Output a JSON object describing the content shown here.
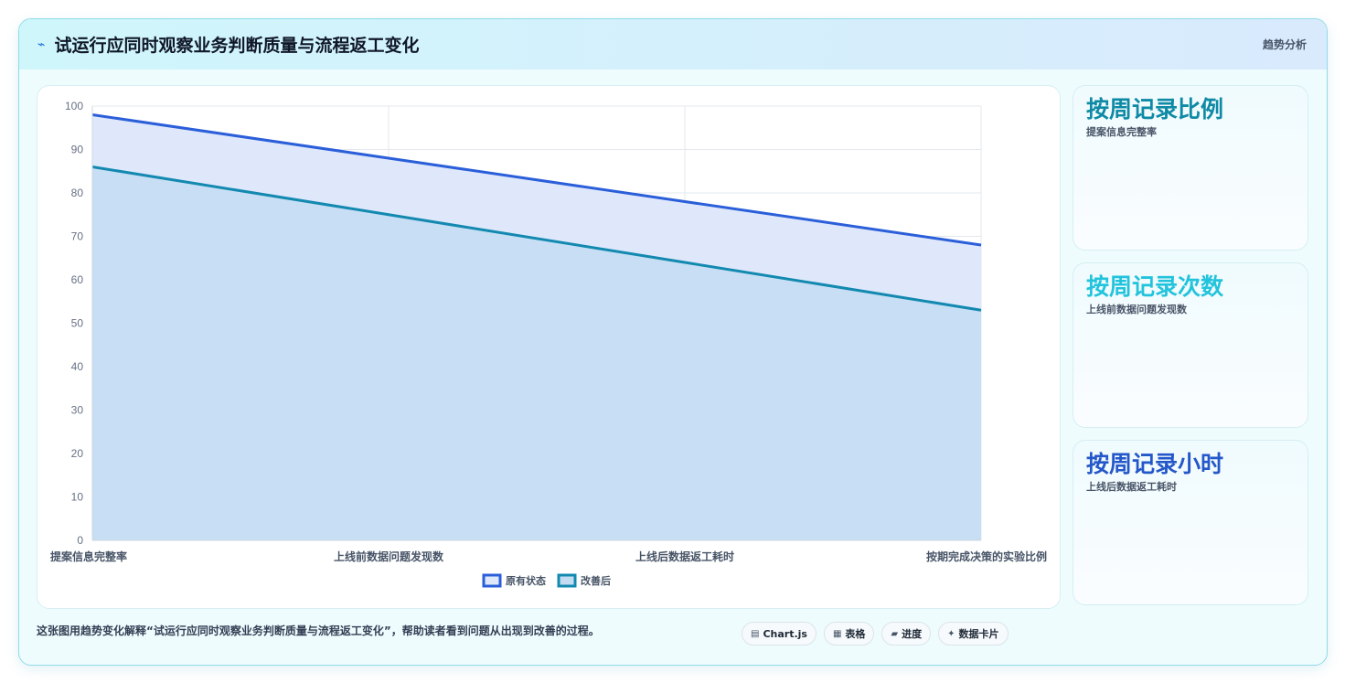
{
  "header": {
    "icon": "line-chart-icon",
    "title": "试运行应同时观察业务判断质量与流程返工变化",
    "tag": "趋势分析"
  },
  "chart_data": {
    "type": "area",
    "title": "",
    "xlabel": "",
    "ylabel": "",
    "ylim": [
      0,
      100
    ],
    "yticks": [
      0,
      10,
      20,
      30,
      40,
      50,
      60,
      70,
      80,
      90,
      100
    ],
    "categories": [
      "提案信息完整率",
      "上线前数据问题发现数",
      "上线后数据返工耗时",
      "按期完成决策的实验比例"
    ],
    "series": [
      {
        "name": "原有状态",
        "values": [
          98,
          88,
          78,
          68
        ],
        "color": "#2b5fd9",
        "fill": "#dfe8fb"
      },
      {
        "name": "改善后",
        "values": [
          86,
          75,
          64,
          53
        ],
        "color": "#1389b0",
        "fill": "#c3dcf2"
      }
    ],
    "grid": true,
    "legend": "bottom-center"
  },
  "side_cards": [
    {
      "title": "按周记录比例",
      "subtitle": "提案信息完整率",
      "color": "#0e8aa5"
    },
    {
      "title": "按周记录次数",
      "subtitle": "上线前数据问题发现数",
      "color": "#22c3dc"
    },
    {
      "title": "按周记录小时",
      "subtitle": "上线后数据返工耗时",
      "color": "#2457c9"
    }
  ],
  "footer": {
    "text": "这张图用趋势变化解释“试运行应同时观察业务判断质量与流程返工变化”，帮助读者看到问题从出现到改善的过程。"
  },
  "pills": [
    {
      "icon": "chart-icon",
      "glyph": "▤",
      "label": "Chart.js"
    },
    {
      "icon": "table-icon",
      "glyph": "▦",
      "label": "表格"
    },
    {
      "icon": "progress-icon",
      "glyph": "▰",
      "label": "进度"
    },
    {
      "icon": "sparkle-icon",
      "glyph": "✦",
      "label": "数据卡片"
    }
  ]
}
